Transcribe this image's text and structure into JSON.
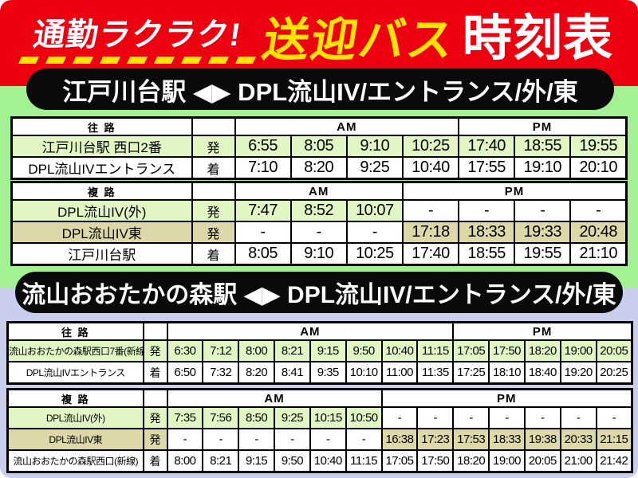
{
  "poster": {
    "colors": {
      "banner_red": "#ed0010",
      "accent_yellow": "#ffe400",
      "pill_black": "#0a0a0a",
      "section1_bg": "#a3f192",
      "section2_bg": "#c9cdee",
      "cell_green": "#e0f6c3",
      "cell_tan": "#ded8a8"
    },
    "header": {
      "catchphrase": "通勤ラクラク!",
      "title_highlight": "送迎バス",
      "title_suffix": "時刻表"
    },
    "sections": [
      {
        "banner": "江戸川台駅 ◀▶ DPL流山IV/エントランス/外/東",
        "tables": [
          {
            "direction": "往 路",
            "am": "AM",
            "pm": "PM",
            "am_cols": 4,
            "pm_cols": 3,
            "rows": [
              {
                "station": "江戸川台駅 西口2番",
                "mark": "発",
                "color": "green",
                "times": [
                  "6:55",
                  "8:05",
                  "9:10",
                  "10:25",
                  "17:40",
                  "18:55",
                  "19:55"
                ]
              },
              {
                "station": "DPL流山IVエントランス",
                "mark": "着",
                "color": "white",
                "times": [
                  "7:10",
                  "8:20",
                  "9:25",
                  "10:40",
                  "17:55",
                  "19:10",
                  "20:10"
                ]
              }
            ]
          },
          {
            "direction": "複 路",
            "am": "AM",
            "pm": "PM",
            "am_cols": 3,
            "pm_cols": 4,
            "rows": [
              {
                "station": "DPL流山IV(外)",
                "mark": "発",
                "color": "green",
                "times": [
                  "7:47",
                  "8:52",
                  "10:07",
                  "-",
                  "-",
                  "-",
                  "-"
                ]
              },
              {
                "station": "DPL流山IV東",
                "mark": "発",
                "color": "tan",
                "times": [
                  "-",
                  "-",
                  "-",
                  "17:18",
                  "18:33",
                  "19:33",
                  "20:48"
                ]
              },
              {
                "station": "江戸川台駅",
                "mark": "着",
                "color": "white",
                "times": [
                  "8:05",
                  "9:10",
                  "10:25",
                  "17:40",
                  "18:55",
                  "19:55",
                  "21:10"
                ]
              }
            ]
          }
        ]
      },
      {
        "banner": "流山おおたかの森駅 ◀▶ DPL流山IV/エントランス/外/東",
        "tables": [
          {
            "direction": "往 路",
            "am": "AM",
            "pm": "PM",
            "am_cols": 8,
            "pm_cols": 5,
            "rows": [
              {
                "station": "流山おおたかの森駅西口7番(新線)",
                "mark": "発",
                "color": "green",
                "times": [
                  "6:30",
                  "7:12",
                  "8:00",
                  "8:21",
                  "9:15",
                  "9:50",
                  "10:40",
                  "11:15",
                  "17:05",
                  "17:50",
                  "18:20",
                  "19:00",
                  "20:05"
                ]
              },
              {
                "station": "DPL流山IVエントランス",
                "mark": "着",
                "color": "white",
                "times": [
                  "6:50",
                  "7:32",
                  "8:20",
                  "8:41",
                  "9:35",
                  "10:10",
                  "11:00",
                  "11:35",
                  "17:25",
                  "18:10",
                  "18:40",
                  "19:20",
                  "20:25"
                ]
              }
            ]
          },
          {
            "direction": "複 路",
            "am": "AM",
            "pm": "PM",
            "am_cols": 6,
            "pm_cols": 7,
            "rows": [
              {
                "station": "DPL流山IV(外)",
                "mark": "発",
                "color": "green",
                "times": [
                  "7:35",
                  "7:56",
                  "8:50",
                  "9:25",
                  "10:15",
                  "10:50",
                  "-",
                  "-",
                  "-",
                  "-",
                  "-",
                  "-",
                  "-"
                ]
              },
              {
                "station": "DPL流山IV東",
                "mark": "発",
                "color": "tan",
                "times": [
                  "-",
                  "-",
                  "-",
                  "-",
                  "-",
                  "-",
                  "16:38",
                  "17:23",
                  "17:53",
                  "18:33",
                  "19:38",
                  "20:33",
                  "21:15"
                ]
              },
              {
                "station": "流山おおたかの森駅西口(新線)",
                "mark": "着",
                "color": "white",
                "times": [
                  "8:00",
                  "8:21",
                  "9:15",
                  "9:50",
                  "10:40",
                  "11:15",
                  "17:05",
                  "17:50",
                  "18:20",
                  "19:00",
                  "20:05",
                  "21:00",
                  "21:42"
                ]
              }
            ]
          }
        ]
      }
    ]
  }
}
